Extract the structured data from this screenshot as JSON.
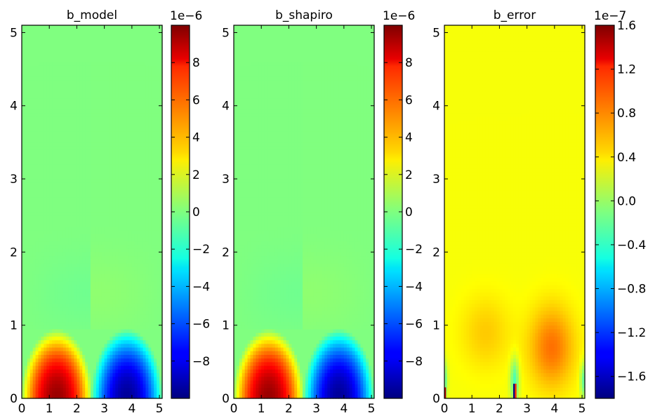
{
  "chart_data": [
    {
      "type": "heatmap",
      "title": "b_model",
      "xlim": [
        0,
        5.1
      ],
      "ylim": [
        0,
        5.1
      ],
      "x_ticks": [
        "0",
        "1",
        "2",
        "3",
        "4",
        "5"
      ],
      "y_ticks": [
        "0",
        "1",
        "2",
        "3",
        "4",
        "5"
      ],
      "colorbar": {
        "colormap": "jet",
        "range": [
          -1e-05,
          1e-05
        ],
        "multiplier": "1e−6",
        "ticks": [
          "−8",
          "−6",
          "−4",
          "−2",
          "0",
          "2",
          "4",
          "6",
          "8"
        ]
      },
      "field": {
        "lobe_amplitude": 9.5e-06,
        "lobe_extent_y": 0.95,
        "split_x": 2.55,
        "x_extent": 5.1
      }
    },
    {
      "type": "heatmap",
      "title": "b_shapiro",
      "xlim": [
        0,
        5.1
      ],
      "ylim": [
        0,
        5.1
      ],
      "x_ticks": [
        "0",
        "1",
        "2",
        "3",
        "4",
        "5"
      ],
      "y_ticks": [
        "0",
        "1",
        "2",
        "3",
        "4",
        "5"
      ],
      "colorbar": {
        "colormap": "jet",
        "range": [
          -1e-05,
          1e-05
        ],
        "multiplier": "1e−6",
        "ticks": [
          "−8",
          "−6",
          "−4",
          "−2",
          "0",
          "2",
          "4",
          "6",
          "8"
        ]
      },
      "field": {
        "lobe_amplitude": 9.5e-06,
        "lobe_extent_y": 0.95,
        "split_x": 2.55,
        "x_extent": 5.1
      }
    },
    {
      "type": "heatmap",
      "title": "b_error",
      "xlim": [
        0,
        5.1
      ],
      "ylim": [
        0,
        5.1
      ],
      "x_ticks": [
        "0",
        "1",
        "2",
        "3",
        "4",
        "5"
      ],
      "y_ticks": [
        "0",
        "1",
        "2",
        "3",
        "4",
        "5"
      ],
      "colorbar": {
        "colormap": "jet",
        "range": [
          -1.8e-07,
          1.6e-07
        ],
        "multiplier": "1e−7",
        "ticks": [
          "−1.6",
          "−1.2",
          "−0.8",
          "−0.4",
          "0.0",
          "0.4",
          "0.8",
          "1.2",
          "1.6"
        ]
      },
      "field": {
        "background": 3e-08,
        "bump_amplitude": 5e-08,
        "bump_center": [
          3.9,
          0.7
        ]
      }
    }
  ]
}
